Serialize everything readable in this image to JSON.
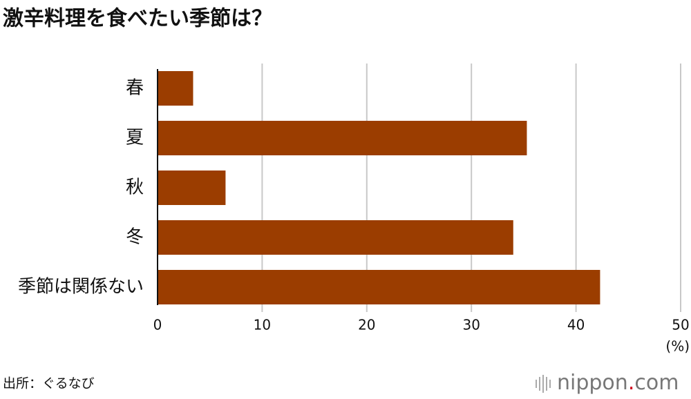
{
  "chart_data": {
    "type": "hbar",
    "title": "激辛料理を食べたい季節は？",
    "categories": [
      "春",
      "夏",
      "秋",
      "冬",
      "季節は関係ない"
    ],
    "values": [
      3.4,
      35.3,
      6.5,
      34.0,
      42.3
    ],
    "color": "#9b3d00",
    "xlim": [
      0,
      50
    ],
    "xticks": [
      0,
      10,
      20,
      30,
      40,
      50
    ],
    "x_unit": "(%)",
    "grid": true,
    "source": "出所：ぐるなび"
  },
  "logo": {
    "name": "nippon",
    "dot": ".",
    "tld": "com"
  }
}
